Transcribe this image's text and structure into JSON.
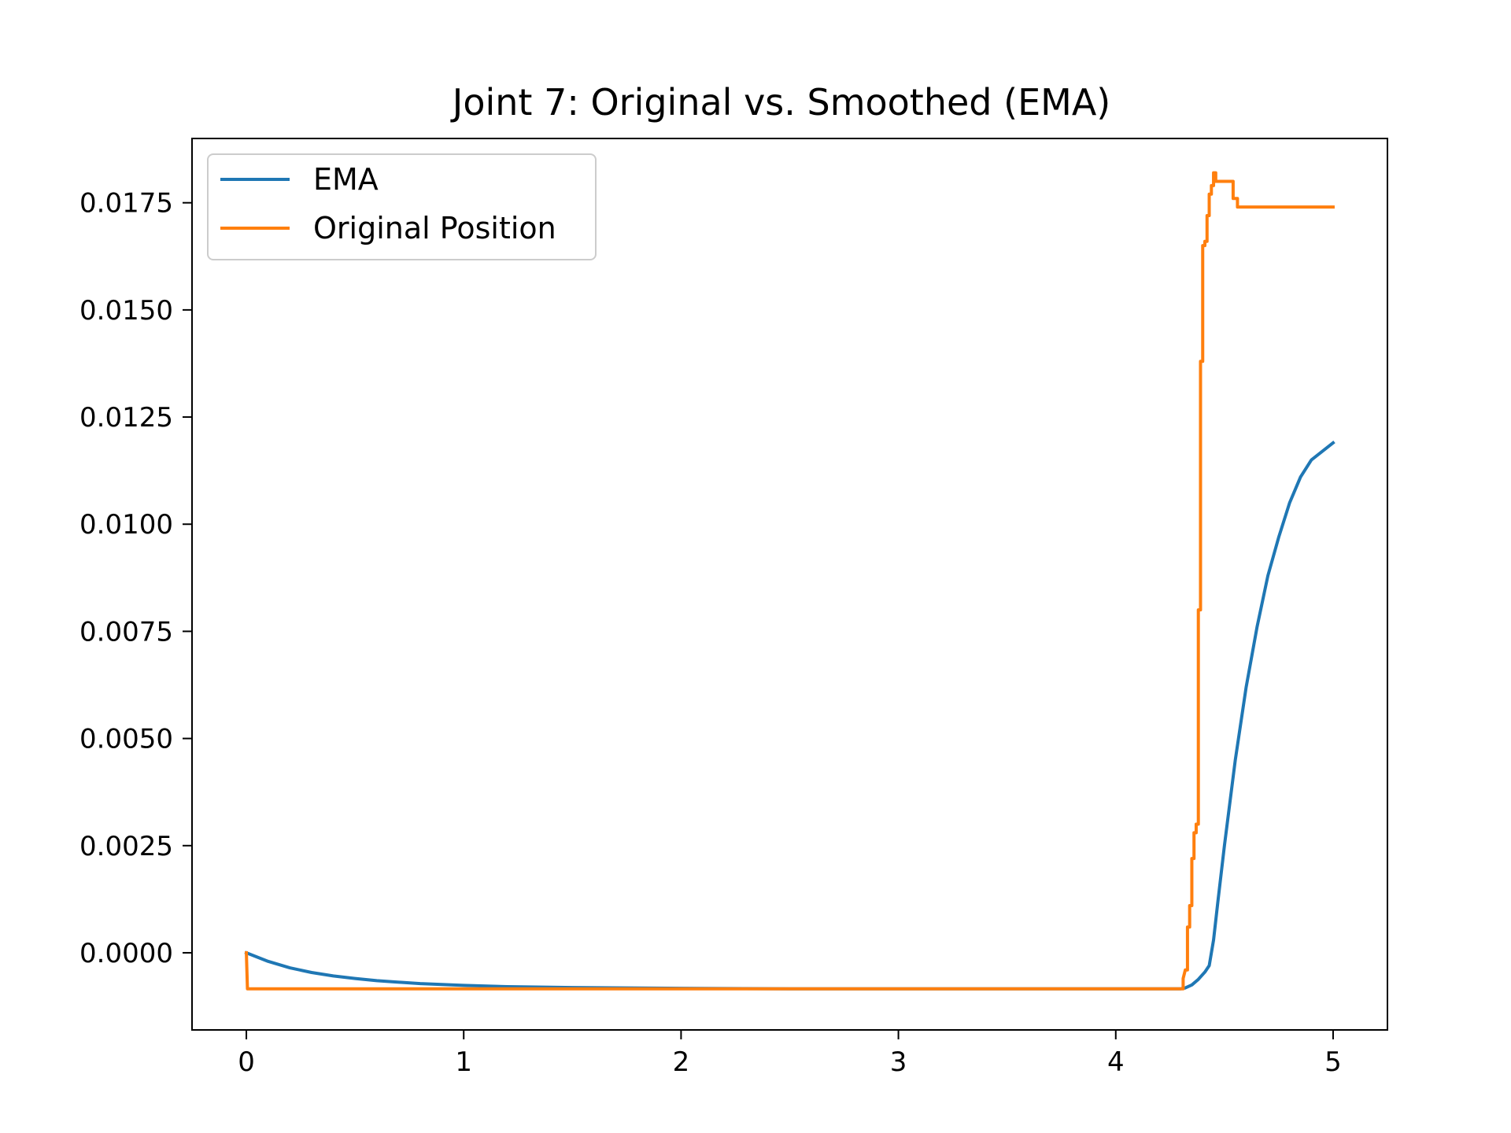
{
  "chart_data": {
    "type": "line",
    "title": "Joint 7: Original vs. Smoothed (EMA)",
    "xlabel": "",
    "ylabel": "",
    "xlim": [
      -0.25,
      5.25
    ],
    "ylim": [
      -0.0018,
      0.019
    ],
    "xticks": [
      0,
      1,
      2,
      3,
      4,
      5
    ],
    "xtick_labels": [
      "0",
      "1",
      "2",
      "3",
      "4",
      "5"
    ],
    "yticks": [
      0.0,
      0.0025,
      0.005,
      0.0075,
      0.01,
      0.0125,
      0.015,
      0.0175
    ],
    "ytick_labels": [
      "0.0000",
      "0.0025",
      "0.0050",
      "0.0075",
      "0.0100",
      "0.0125",
      "0.0150",
      "0.0175"
    ],
    "grid": false,
    "legend_position": "top-left",
    "series": [
      {
        "name": "EMA",
        "color": "#1f77b4",
        "x": [
          0,
          0.1,
          0.2,
          0.3,
          0.4,
          0.5,
          0.6,
          0.8,
          1.0,
          1.2,
          1.5,
          2.0,
          2.5,
          3.0,
          3.5,
          4.0,
          4.3,
          4.32,
          4.35,
          4.38,
          4.41,
          4.43,
          4.45,
          4.47,
          4.5,
          4.55,
          4.6,
          4.65,
          4.7,
          4.75,
          4.8,
          4.85,
          4.9,
          4.95,
          5.0
        ],
        "y": [
          0.0,
          -0.0002,
          -0.00035,
          -0.00046,
          -0.00054,
          -0.0006,
          -0.00065,
          -0.00072,
          -0.00076,
          -0.00079,
          -0.00081,
          -0.00083,
          -0.00084,
          -0.00084,
          -0.00084,
          -0.00084,
          -0.00084,
          -0.00082,
          -0.00075,
          -0.00062,
          -0.00045,
          -0.0003,
          0.0003,
          0.0012,
          0.0025,
          0.0045,
          0.0062,
          0.0076,
          0.0088,
          0.0097,
          0.0105,
          0.0111,
          0.0115,
          0.0117,
          0.0119
        ]
      },
      {
        "name": "Original Position",
        "color": "#ff7f0e",
        "x": [
          0,
          0.005,
          0.01,
          4.3,
          4.31,
          4.31,
          4.32,
          4.33,
          4.33,
          4.34,
          4.34,
          4.35,
          4.35,
          4.36,
          4.36,
          4.37,
          4.37,
          4.38,
          4.38,
          4.39,
          4.39,
          4.4,
          4.4,
          4.41,
          4.41,
          4.42,
          4.42,
          4.43,
          4.43,
          4.44,
          4.44,
          4.45,
          4.45,
          4.46,
          4.46,
          4.47,
          4.47,
          4.48,
          4.49,
          4.49,
          4.54,
          4.54,
          4.56,
          4.56,
          5.0
        ],
        "y": [
          0.0,
          -0.00084,
          -0.00084,
          -0.00084,
          -0.00084,
          -0.0006,
          -0.0004,
          -0.0004,
          0.0006,
          0.0006,
          0.0011,
          0.0011,
          0.0022,
          0.0022,
          0.0028,
          0.0028,
          0.003,
          0.003,
          0.008,
          0.008,
          0.0138,
          0.0138,
          0.0165,
          0.0165,
          0.0166,
          0.0166,
          0.0172,
          0.0172,
          0.0177,
          0.0177,
          0.0179,
          0.0179,
          0.0182,
          0.0182,
          0.018,
          0.018,
          0.018,
          0.018,
          0.018,
          0.018,
          0.018,
          0.0176,
          0.0176,
          0.0174,
          0.0174
        ]
      }
    ]
  }
}
